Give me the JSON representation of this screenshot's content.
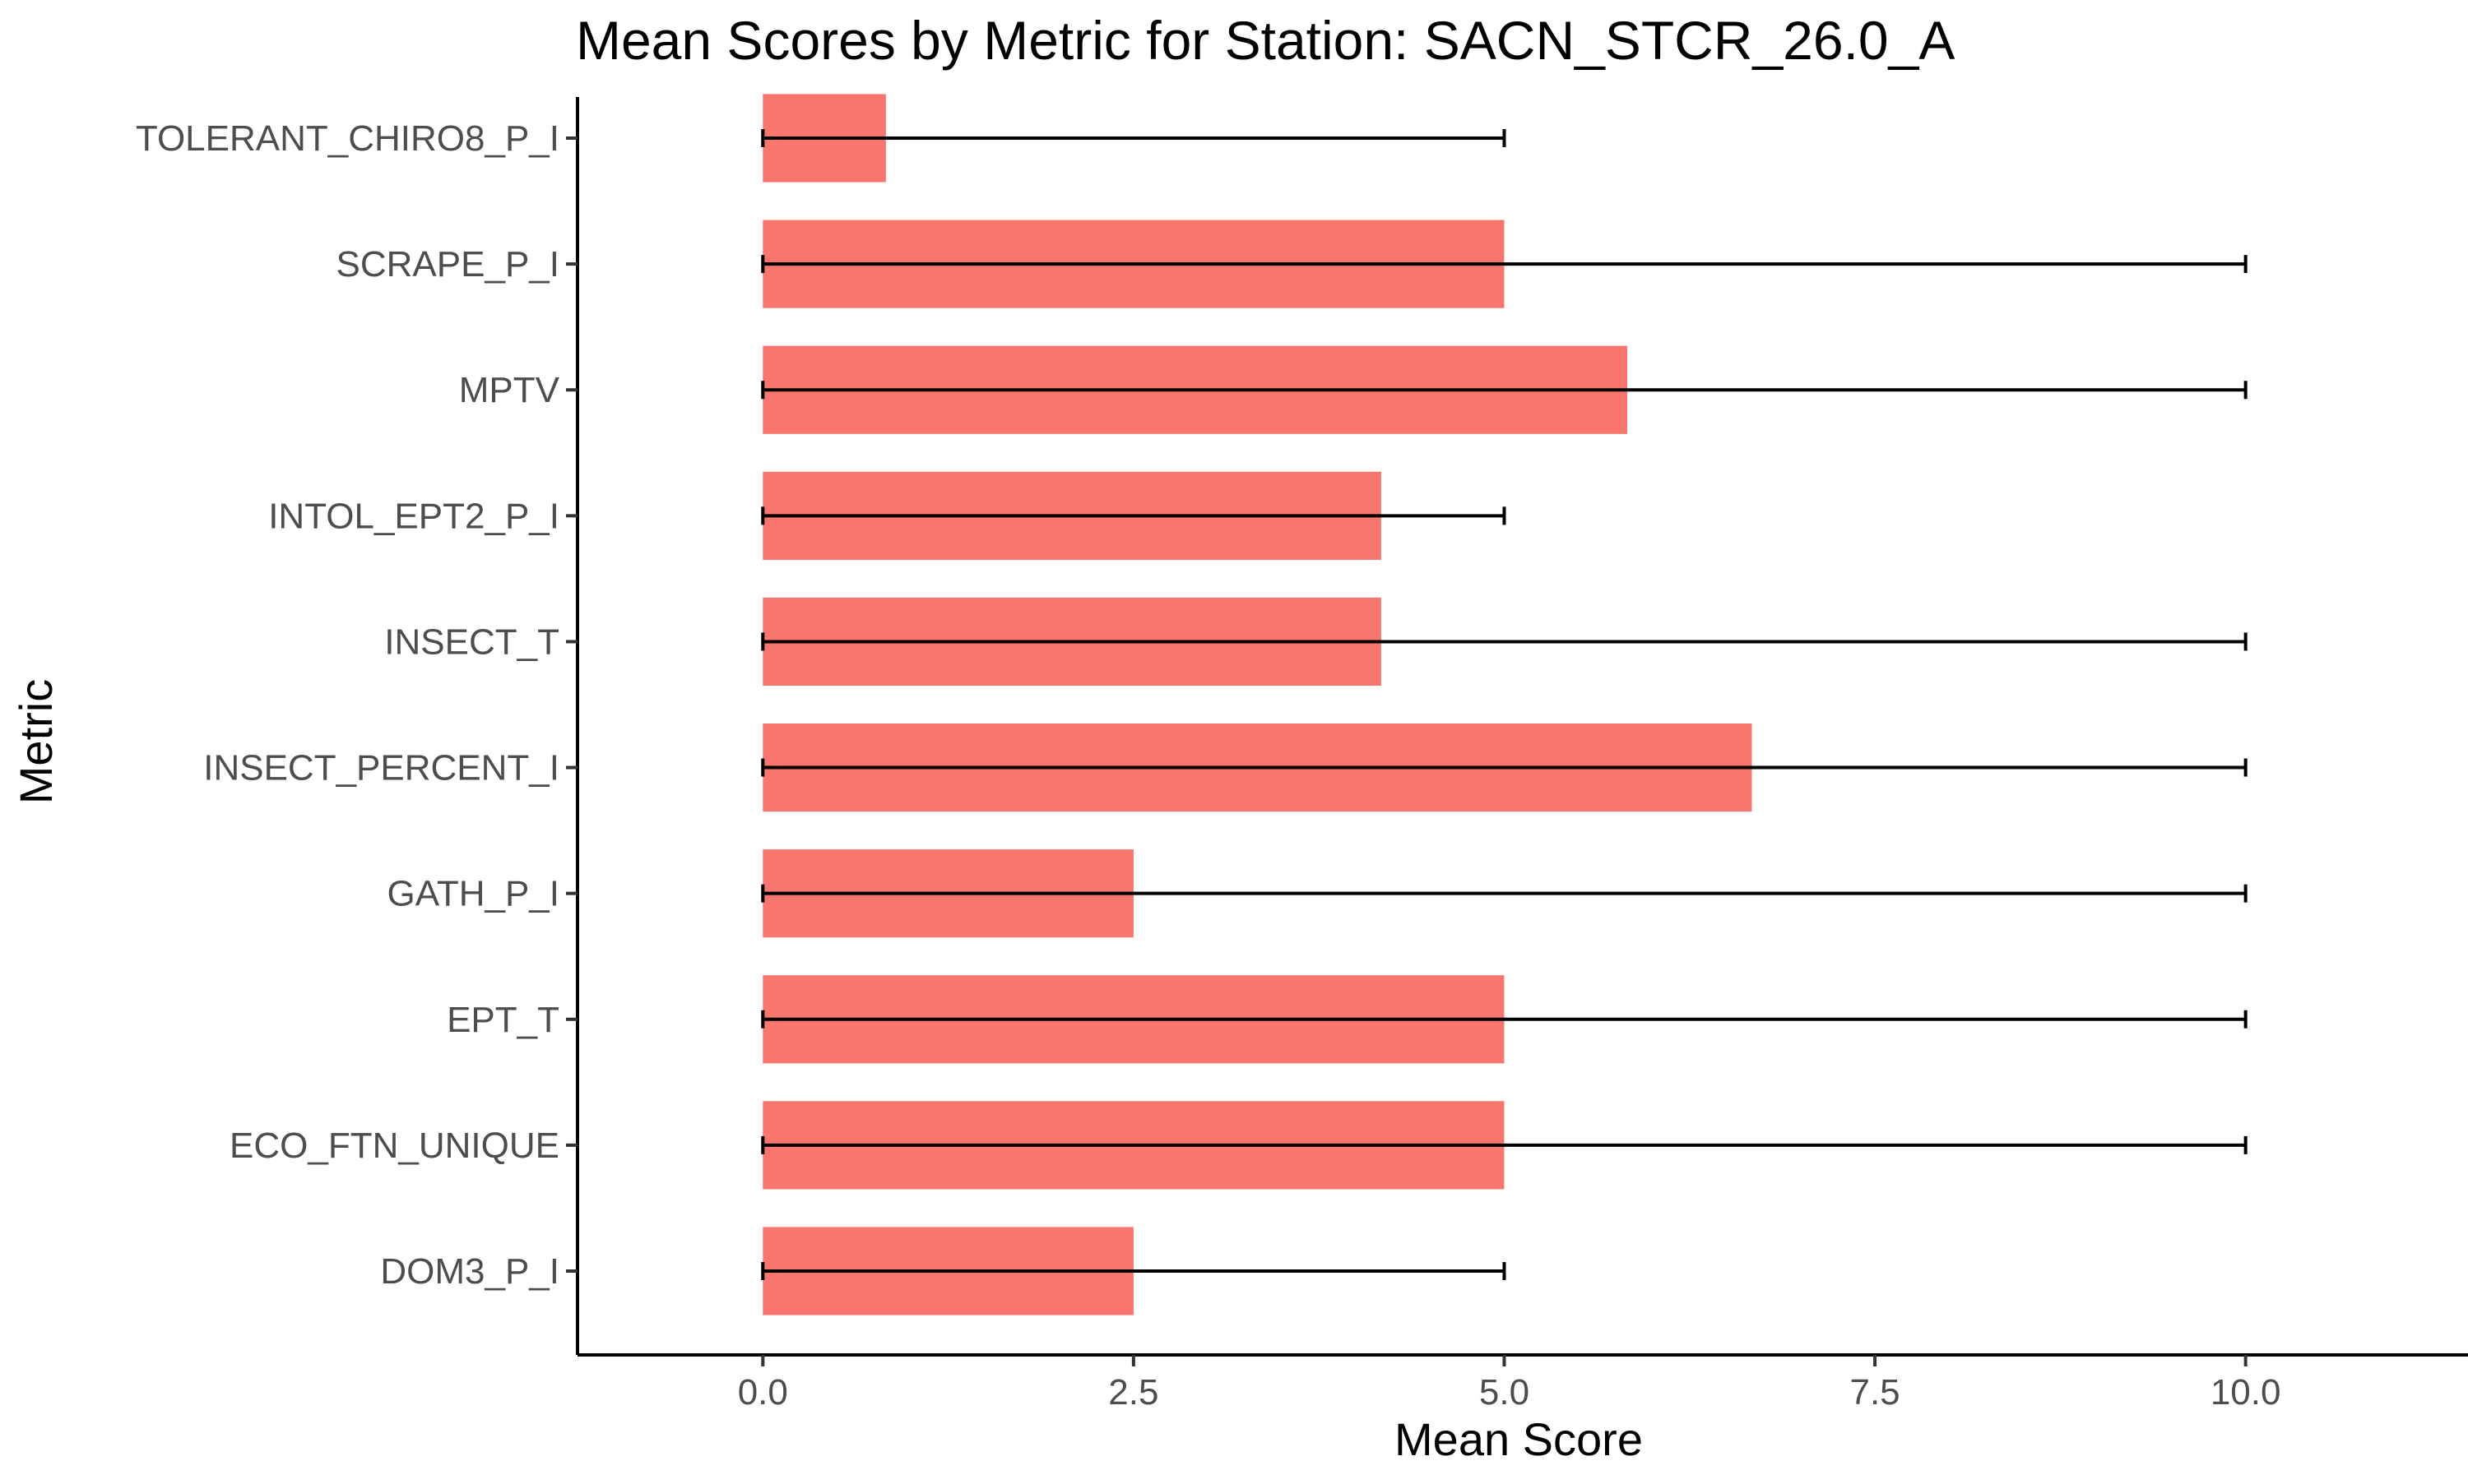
{
  "chart_data": {
    "type": "bar",
    "orientation": "horizontal",
    "title": "Mean Scores by Metric for Station: SACN_STCR_26.0_A",
    "xlabel": "Mean Score",
    "ylabel": "Metric",
    "categories": [
      "DOM3_P_I",
      "ECO_FTN_UNIQUE",
      "EPT_T",
      "GATH_P_I",
      "INSECT_PERCENT_I",
      "INSECT_T",
      "INTOL_EPT2_P_I",
      "MPTV",
      "SCRAPE_P_I",
      "TOLERANT_CHIRO8_P_I"
    ],
    "values": [
      2.5,
      5.0,
      5.0,
      2.5,
      6.67,
      4.17,
      4.17,
      5.83,
      5.0,
      0.83
    ],
    "error_low": [
      0,
      0,
      0,
      0,
      0,
      0,
      0,
      0,
      0,
      0
    ],
    "error_high": [
      5,
      10,
      10,
      10,
      10,
      10,
      5,
      10,
      10,
      5
    ],
    "xlim": [
      -1.25,
      11.5
    ],
    "x_ticks": [
      0,
      2.5,
      5,
      7.5,
      10
    ],
    "x_tick_labels": [
      "0.0",
      "2.5",
      "5.0",
      "7.5",
      "10.0"
    ],
    "grid": false,
    "legend": "none",
    "bar_color": "#F8766D",
    "error_bar_color": "#000000"
  }
}
